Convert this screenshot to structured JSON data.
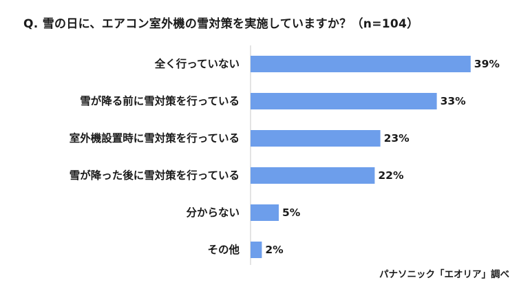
{
  "chart_data": {
    "type": "bar",
    "orientation": "horizontal",
    "title": "Q. 雪の日に、エアコン室外機の雪対策を実施していますか？（n=104）",
    "categories": [
      "全く行っていない",
      "雪が降る前に雪対策を行っている",
      "室外機設置時に雪対策を行っている",
      "雪が降った後に雪対策を行っている",
      "分からない",
      "その他"
    ],
    "values": [
      39,
      33,
      23,
      22,
      5,
      2
    ],
    "value_labels": [
      "39%",
      "33%",
      "23%",
      "22%",
      "5%",
      "2%"
    ],
    "unit": "%",
    "xlim": [
      0,
      50
    ],
    "grid": false,
    "legend": "none",
    "bar_color": "#6d9eeb",
    "axis_color": "#c8c8c8"
  },
  "source_note": "パナソニック「エオリア」調べ"
}
